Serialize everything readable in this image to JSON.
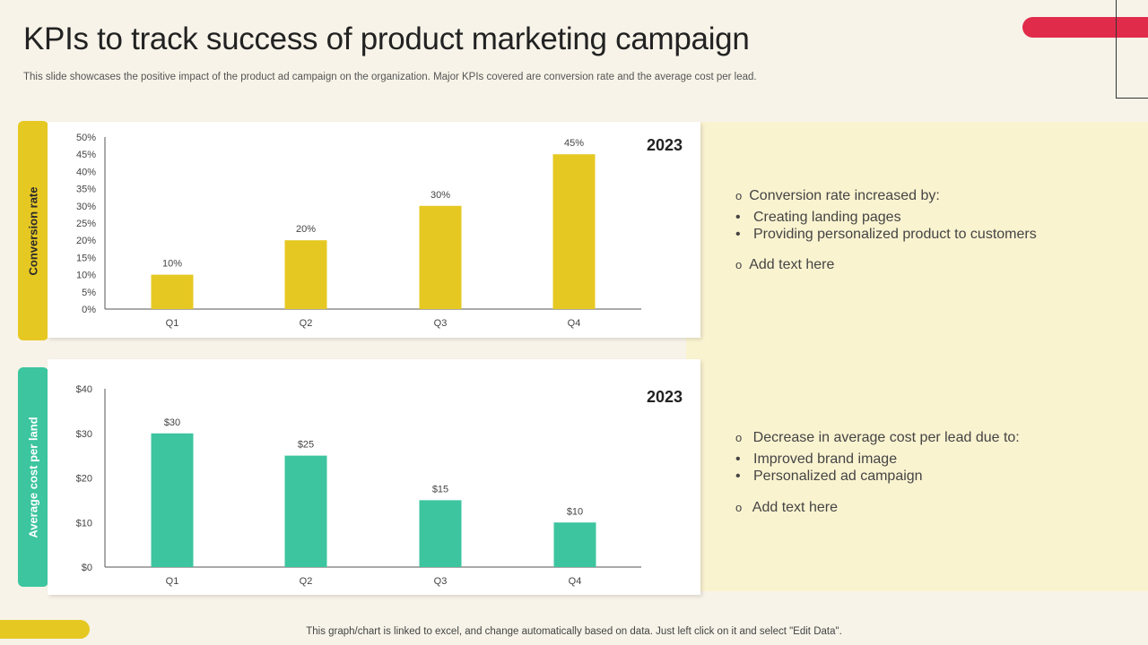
{
  "page": {
    "title": "KPIs to track success of product marketing campaign",
    "subtitle": "This slide showcases the positive impact of the product ad campaign on the organization. Major KPIs covered are conversion rate and the average cost per lead.",
    "footer": "This graph/chart is linked to excel,  and change automatically based on data. Just left click on it and select \"Edit Data\"."
  },
  "colors": {
    "yellow": "#e6c823",
    "teal": "#3cc59f",
    "red": "#e12b4b",
    "panel": "#faf3d0"
  },
  "chart_data": [
    {
      "type": "bar",
      "tab_label": "Conversion rate",
      "year": "2023",
      "categories": [
        "Q1",
        "Q2",
        "Q3",
        "Q4"
      ],
      "values": [
        10,
        20,
        30,
        45
      ],
      "value_labels": [
        "10%",
        "20%",
        "30%",
        "45%"
      ],
      "ylim": [
        0,
        50
      ],
      "yticks": [
        0,
        5,
        10,
        15,
        20,
        25,
        30,
        35,
        40,
        45,
        50
      ],
      "ytick_labels": [
        "0%",
        "5%",
        "10%",
        "15%",
        "20%",
        "25%",
        "30%",
        "35%",
        "40%",
        "45%",
        "50%"
      ],
      "ylabel": "Conversion rate",
      "grid": false,
      "legend": "none"
    },
    {
      "type": "bar",
      "tab_label": "Average cost per land",
      "year": "2023",
      "categories": [
        "Q1",
        "Q2",
        "Q3",
        "Q4"
      ],
      "values": [
        30,
        25,
        15,
        10
      ],
      "value_labels": [
        "$30",
        "$25",
        "$15",
        "$10"
      ],
      "ylim": [
        0,
        40
      ],
      "yticks": [
        0,
        10,
        20,
        30,
        40
      ],
      "ytick_labels": [
        "$0",
        "$10",
        "$20",
        "$30",
        "$40"
      ],
      "ylabel": "Average cost per land",
      "grid": false,
      "legend": "none"
    }
  ],
  "notes": [
    {
      "heading": "Conversion rate increased by:",
      "heading_mark": "o",
      "bullets": [
        "Creating landing pages",
        "Providing personalized product to  customers"
      ],
      "bullet_mark": "•",
      "extra": "Add text here"
    },
    {
      "heading": " Decrease in average cost per lead due to:",
      "heading_mark": "o",
      "bullets": [
        "Improved brand image",
        "Personalized ad campaign"
      ],
      "bullet_mark": "•",
      "extra": " Add text here"
    }
  ]
}
